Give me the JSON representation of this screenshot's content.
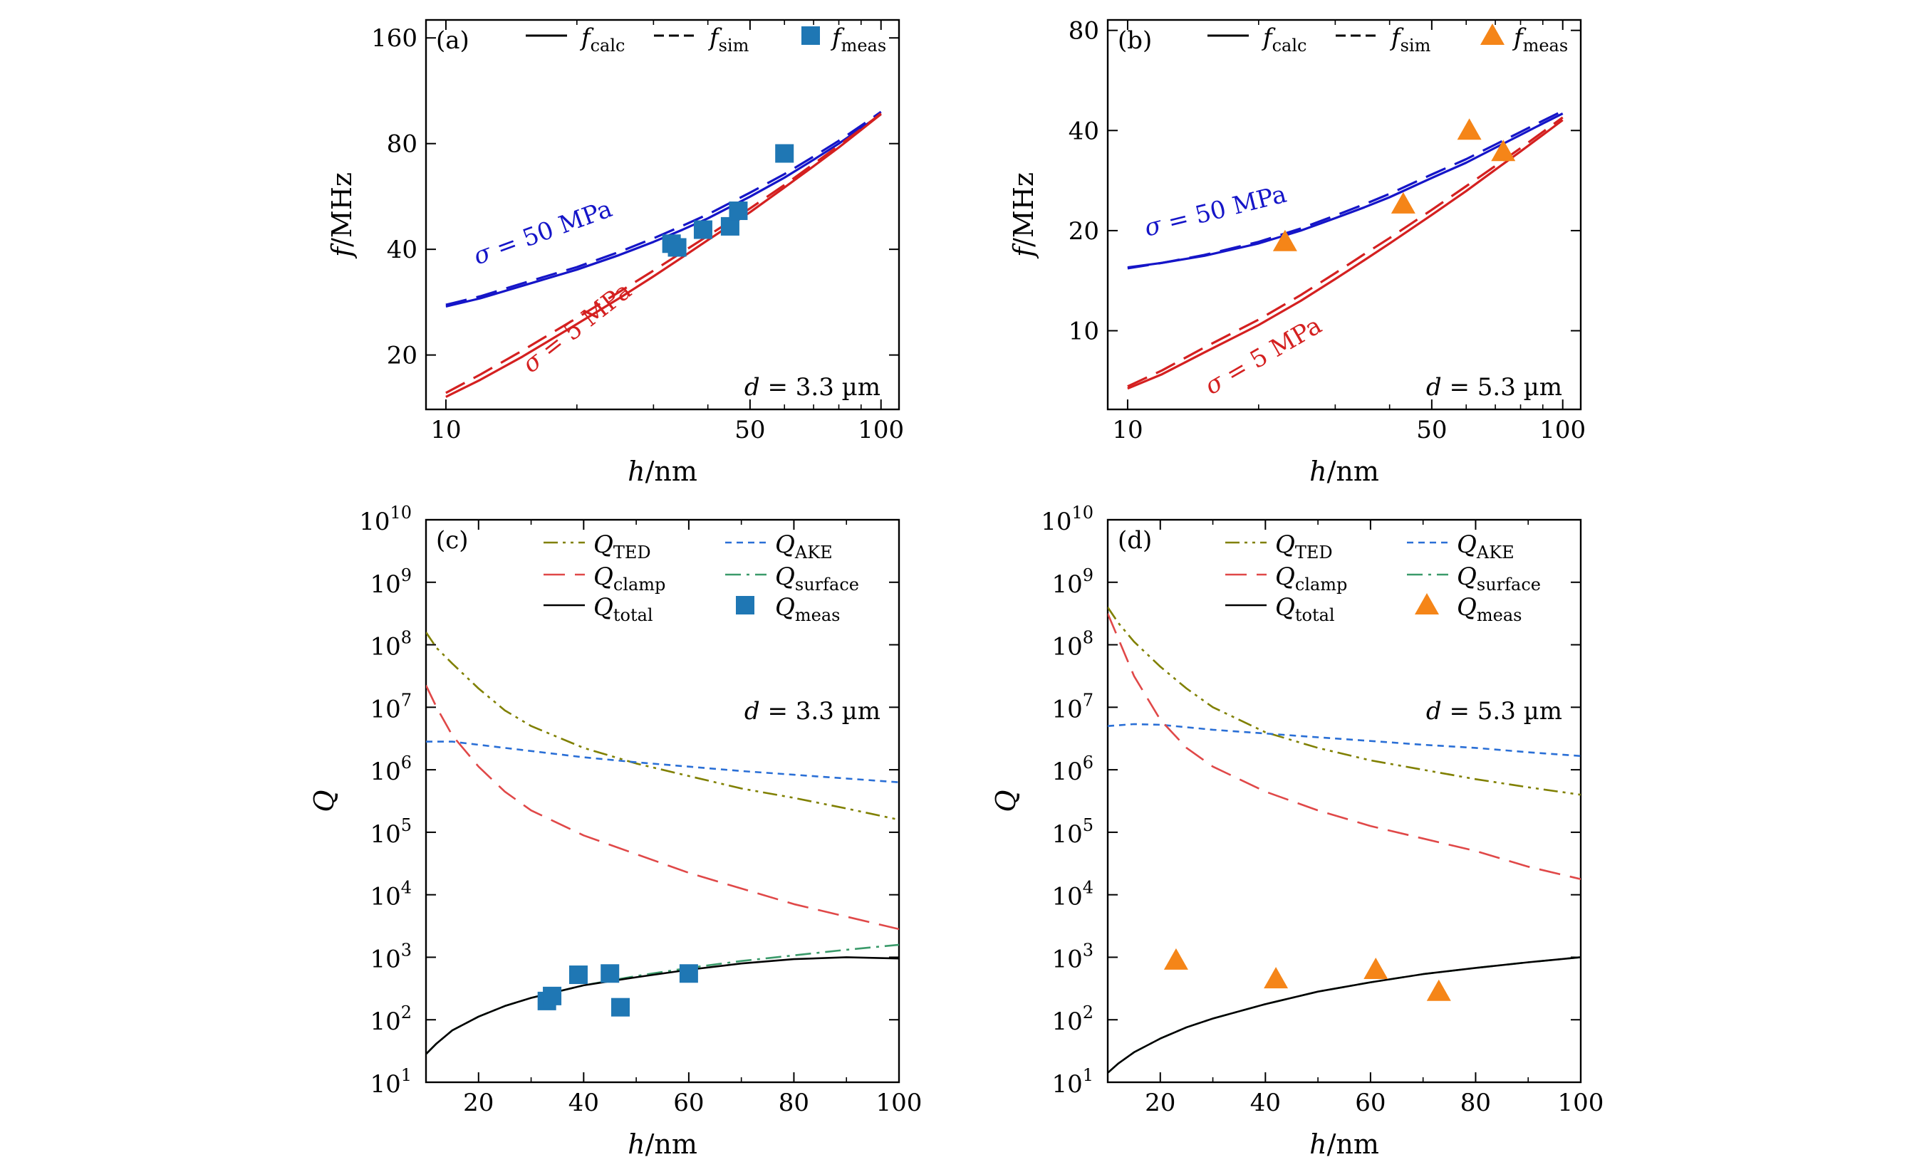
{
  "chart_data": [
    {
      "panel": "(a)",
      "type": "line",
      "xlabel": "h/nm",
      "ylabel": "f/MHz",
      "xscale": "log",
      "yscale": "log",
      "xlim": [
        9,
        110
      ],
      "ylim": [
        14,
        180
      ],
      "xticks": [
        10,
        50,
        100
      ],
      "yticks": [
        20,
        40,
        80,
        160
      ],
      "legend": [
        "f_calc",
        "f_sim",
        "f_meas"
      ],
      "legend_placement": "top",
      "annotation": "d = 3.3 µm",
      "series": [
        {
          "name": "σ = 50 MPa",
          "kind": "calc",
          "color": "#1515c8",
          "x": [
            10,
            12,
            15,
            20,
            25,
            30,
            35,
            40,
            50,
            60,
            70,
            80,
            90,
            100
          ],
          "y": [
            27.5,
            29.0,
            31.5,
            35.0,
            38.5,
            42.0,
            45.5,
            49.0,
            56.5,
            64.0,
            72.0,
            80.0,
            88.5,
            97.0
          ]
        },
        {
          "name": "σ = 50 MPa",
          "kind": "sim",
          "color": "#1515c8",
          "x": [
            10,
            12,
            15,
            20,
            25,
            30,
            35,
            40,
            50,
            60,
            70,
            80,
            90,
            100
          ],
          "y": [
            27.8,
            29.4,
            32.0,
            35.6,
            39.3,
            43.0,
            46.7,
            50.3,
            58.0,
            65.5,
            73.5,
            81.5,
            90.0,
            98.5
          ]
        },
        {
          "name": "σ = 5 MPa",
          "kind": "calc",
          "color": "#d42020",
          "x": [
            10,
            12,
            15,
            20,
            25,
            30,
            35,
            40,
            50,
            60,
            70,
            80,
            90,
            100
          ],
          "y": [
            15.2,
            17.0,
            19.8,
            24.5,
            29.0,
            33.5,
            38.0,
            42.5,
            51.0,
            60.0,
            69.0,
            78.0,
            87.5,
            97.0
          ]
        },
        {
          "name": "σ = 5 MPa",
          "kind": "sim",
          "color": "#d42020",
          "x": [
            10,
            12,
            15,
            20,
            25,
            30,
            35,
            40,
            50,
            60,
            70,
            80,
            90,
            100
          ],
          "y": [
            15.6,
            17.6,
            20.6,
            25.5,
            30.2,
            34.8,
            39.3,
            43.7,
            52.3,
            61.0,
            70.0,
            79.0,
            88.0,
            97.5
          ]
        }
      ],
      "measured": {
        "marker": "square",
        "color": "#1f77b4",
        "x": [
          33,
          34,
          39,
          45,
          47,
          60
        ],
        "y": [
          41.5,
          40.5,
          45.5,
          46.5,
          51.5,
          75.0
        ]
      },
      "curve_labels": [
        "σ = 50 MPa",
        "σ = 5 MPa"
      ]
    },
    {
      "panel": "(b)",
      "type": "line",
      "xlabel": "h/nm",
      "ylabel": "f/MHz",
      "xscale": "log",
      "yscale": "log",
      "xlim": [
        9,
        110
      ],
      "ylim": [
        5.8,
        86
      ],
      "xticks": [
        10,
        50,
        100
      ],
      "yticks": [
        10,
        20,
        40,
        80
      ],
      "legend": [
        "f_calc",
        "f_sim",
        "f_meas"
      ],
      "legend_placement": "top",
      "annotation": "d = 5.3 µm",
      "series": [
        {
          "name": "σ = 50 MPa",
          "kind": "calc",
          "color": "#1515c8",
          "x": [
            10,
            12,
            15,
            20,
            25,
            30,
            35,
            40,
            50,
            60,
            70,
            80,
            90,
            100
          ],
          "y": [
            15.5,
            16.0,
            16.8,
            18.3,
            20.0,
            21.8,
            23.5,
            25.2,
            28.8,
            32.0,
            35.5,
            38.8,
            42.0,
            45.0
          ]
        },
        {
          "name": "σ = 50 MPa",
          "kind": "sim",
          "color": "#1515c8",
          "x": [
            10,
            12,
            15,
            20,
            25,
            30,
            35,
            40,
            50,
            60,
            70,
            80,
            90,
            100
          ],
          "y": [
            15.4,
            16.0,
            16.9,
            18.5,
            20.3,
            22.2,
            24.0,
            25.8,
            29.5,
            32.8,
            36.3,
            39.6,
            42.8,
            45.8
          ]
        },
        {
          "name": "σ = 5 MPa",
          "kind": "calc",
          "color": "#d42020",
          "x": [
            10,
            12,
            15,
            20,
            25,
            30,
            35,
            40,
            50,
            60,
            70,
            80,
            90,
            100
          ],
          "y": [
            6.7,
            7.4,
            8.6,
            10.4,
            12.3,
            14.3,
            16.3,
            18.3,
            22.3,
            26.3,
            30.5,
            34.6,
            38.8,
            43.0
          ]
        },
        {
          "name": "σ = 5 MPa",
          "kind": "sim",
          "color": "#d42020",
          "x": [
            10,
            12,
            15,
            20,
            25,
            30,
            35,
            40,
            50,
            60,
            70,
            80,
            90,
            100
          ],
          "y": [
            6.8,
            7.6,
            8.9,
            10.8,
            12.8,
            14.9,
            17.0,
            19.0,
            23.1,
            27.2,
            31.3,
            35.4,
            39.6,
            43.8
          ]
        }
      ],
      "measured": {
        "marker": "triangle",
        "color": "#f58518",
        "x": [
          23,
          43,
          61,
          73
        ],
        "y": [
          18.5,
          24.0,
          40.0,
          34.5
        ]
      },
      "curve_labels": [
        "σ = 50 MPa",
        "σ = 5 MPa"
      ]
    },
    {
      "panel": "(c)",
      "type": "line",
      "xlabel": "h/nm",
      "ylabel": "Q",
      "xscale": "linear",
      "yscale": "log",
      "xlim": [
        10,
        100
      ],
      "ylim": [
        10,
        10000000000
      ],
      "xticks": [
        20,
        40,
        60,
        80,
        100
      ],
      "yticks": [
        1,
        2,
        3,
        4,
        5,
        6,
        7,
        8,
        9,
        10
      ],
      "legend": [
        "Q_TED",
        "Q_AKE",
        "Q_clamp",
        "Q_surface",
        "Q_total",
        "Q_meas"
      ],
      "legend_placement": "top",
      "annotation": "d = 3.3 µm",
      "series": [
        {
          "name": "Q_TED",
          "style": "dashdotdot",
          "color": "#808000",
          "x": [
            10,
            12,
            15,
            20,
            25,
            30,
            40,
            50,
            60,
            70,
            80,
            90,
            100
          ],
          "logy": [
            8.2,
            7.95,
            7.7,
            7.3,
            6.95,
            6.7,
            6.35,
            6.1,
            5.9,
            5.7,
            5.55,
            5.38,
            5.2
          ]
        },
        {
          "name": "Q_AKE",
          "style": "dotted",
          "color": "#2a6fd6",
          "x": [
            10,
            15,
            20,
            30,
            40,
            50,
            60,
            70,
            80,
            90,
            100
          ],
          "logy": [
            6.45,
            6.45,
            6.4,
            6.3,
            6.2,
            6.12,
            6.05,
            5.98,
            5.92,
            5.86,
            5.8
          ]
        },
        {
          "name": "Q_clamp",
          "style": "dashed",
          "color": "#e04848",
          "x": [
            10,
            12,
            15,
            20,
            25,
            30,
            40,
            50,
            60,
            70,
            80,
            90,
            100
          ],
          "logy": [
            7.35,
            7.0,
            6.55,
            6.05,
            5.65,
            5.35,
            4.95,
            4.65,
            4.35,
            4.1,
            3.85,
            3.65,
            3.45
          ]
        },
        {
          "name": "Q_surface",
          "style": "dashdot",
          "color": "#3a9a6a",
          "x": [
            10,
            12,
            15,
            20,
            25,
            30,
            40,
            50,
            60,
            70,
            80,
            90,
            100
          ],
          "logy": [
            1.45,
            1.62,
            1.83,
            2.05,
            2.22,
            2.35,
            2.55,
            2.7,
            2.83,
            2.94,
            3.03,
            3.12,
            3.2
          ]
        },
        {
          "name": "Q_total",
          "style": "solid",
          "color": "#000000",
          "x": [
            10,
            12,
            15,
            20,
            25,
            30,
            40,
            50,
            60,
            70,
            80,
            90,
            100
          ],
          "logy": [
            1.45,
            1.62,
            1.83,
            2.05,
            2.22,
            2.35,
            2.55,
            2.68,
            2.8,
            2.9,
            2.97,
            3.0,
            2.98
          ]
        }
      ],
      "measured": {
        "name": "Q_meas",
        "marker": "square",
        "color": "#1f77b4",
        "x": [
          33,
          34,
          39,
          45,
          47,
          60
        ],
        "logy": [
          2.3,
          2.38,
          2.72,
          2.74,
          2.2,
          2.74
        ]
      }
    },
    {
      "panel": "(d)",
      "type": "line",
      "xlabel": "h/nm",
      "ylabel": "Q",
      "xscale": "linear",
      "yscale": "log",
      "xlim": [
        10,
        100
      ],
      "ylim": [
        10,
        10000000000
      ],
      "xticks": [
        20,
        40,
        60,
        80,
        100
      ],
      "yticks": [
        1,
        2,
        3,
        4,
        5,
        6,
        7,
        8,
        9,
        10
      ],
      "legend": [
        "Q_TED",
        "Q_AKE",
        "Q_clamp",
        "Q_surface",
        "Q_total",
        "Q_meas"
      ],
      "legend_placement": "top",
      "annotation": "d = 5.3 µm",
      "series": [
        {
          "name": "Q_TED",
          "style": "dashdotdot",
          "color": "#808000",
          "x": [
            10,
            12,
            15,
            20,
            25,
            30,
            40,
            50,
            60,
            70,
            80,
            90,
            100
          ],
          "logy": [
            8.6,
            8.35,
            8.05,
            7.65,
            7.3,
            7.0,
            6.6,
            6.35,
            6.15,
            6.0,
            5.85,
            5.72,
            5.6
          ]
        },
        {
          "name": "Q_AKE",
          "style": "dotted",
          "color": "#2a6fd6",
          "x": [
            10,
            15,
            20,
            25,
            30,
            40,
            50,
            60,
            70,
            80,
            90,
            100
          ],
          "logy": [
            6.7,
            6.73,
            6.72,
            6.68,
            6.64,
            6.58,
            6.52,
            6.46,
            6.4,
            6.35,
            6.28,
            6.22
          ]
        },
        {
          "name": "Q_clamp",
          "style": "dashed",
          "color": "#e04848",
          "x": [
            10,
            12,
            15,
            20,
            25,
            30,
            40,
            50,
            60,
            70,
            80,
            90,
            100
          ],
          "logy": [
            8.5,
            8.1,
            7.5,
            6.8,
            6.35,
            6.05,
            5.65,
            5.35,
            5.1,
            4.9,
            4.7,
            4.45,
            4.25
          ]
        },
        {
          "name": "Q_surface",
          "style": "dashdot",
          "color": "#3a9a6a",
          "x": [
            10,
            12,
            15,
            20,
            25,
            30,
            40,
            50,
            60,
            70,
            80,
            90,
            100
          ],
          "logy": [
            1.15,
            1.3,
            1.48,
            1.7,
            1.88,
            2.02,
            2.25,
            2.45,
            2.6,
            2.73,
            2.83,
            2.92,
            3.0
          ]
        },
        {
          "name": "Q_total",
          "style": "solid",
          "color": "#000000",
          "x": [
            10,
            12,
            15,
            20,
            25,
            30,
            40,
            50,
            60,
            70,
            80,
            90,
            100
          ],
          "logy": [
            1.15,
            1.3,
            1.48,
            1.7,
            1.88,
            2.02,
            2.25,
            2.45,
            2.6,
            2.73,
            2.83,
            2.92,
            3.0
          ]
        }
      ],
      "measured": {
        "name": "Q_meas",
        "marker": "triangle",
        "color": "#f58518",
        "x": [
          23,
          42,
          61,
          73
        ],
        "logy": [
          2.95,
          2.65,
          2.8,
          2.45
        ]
      }
    }
  ]
}
